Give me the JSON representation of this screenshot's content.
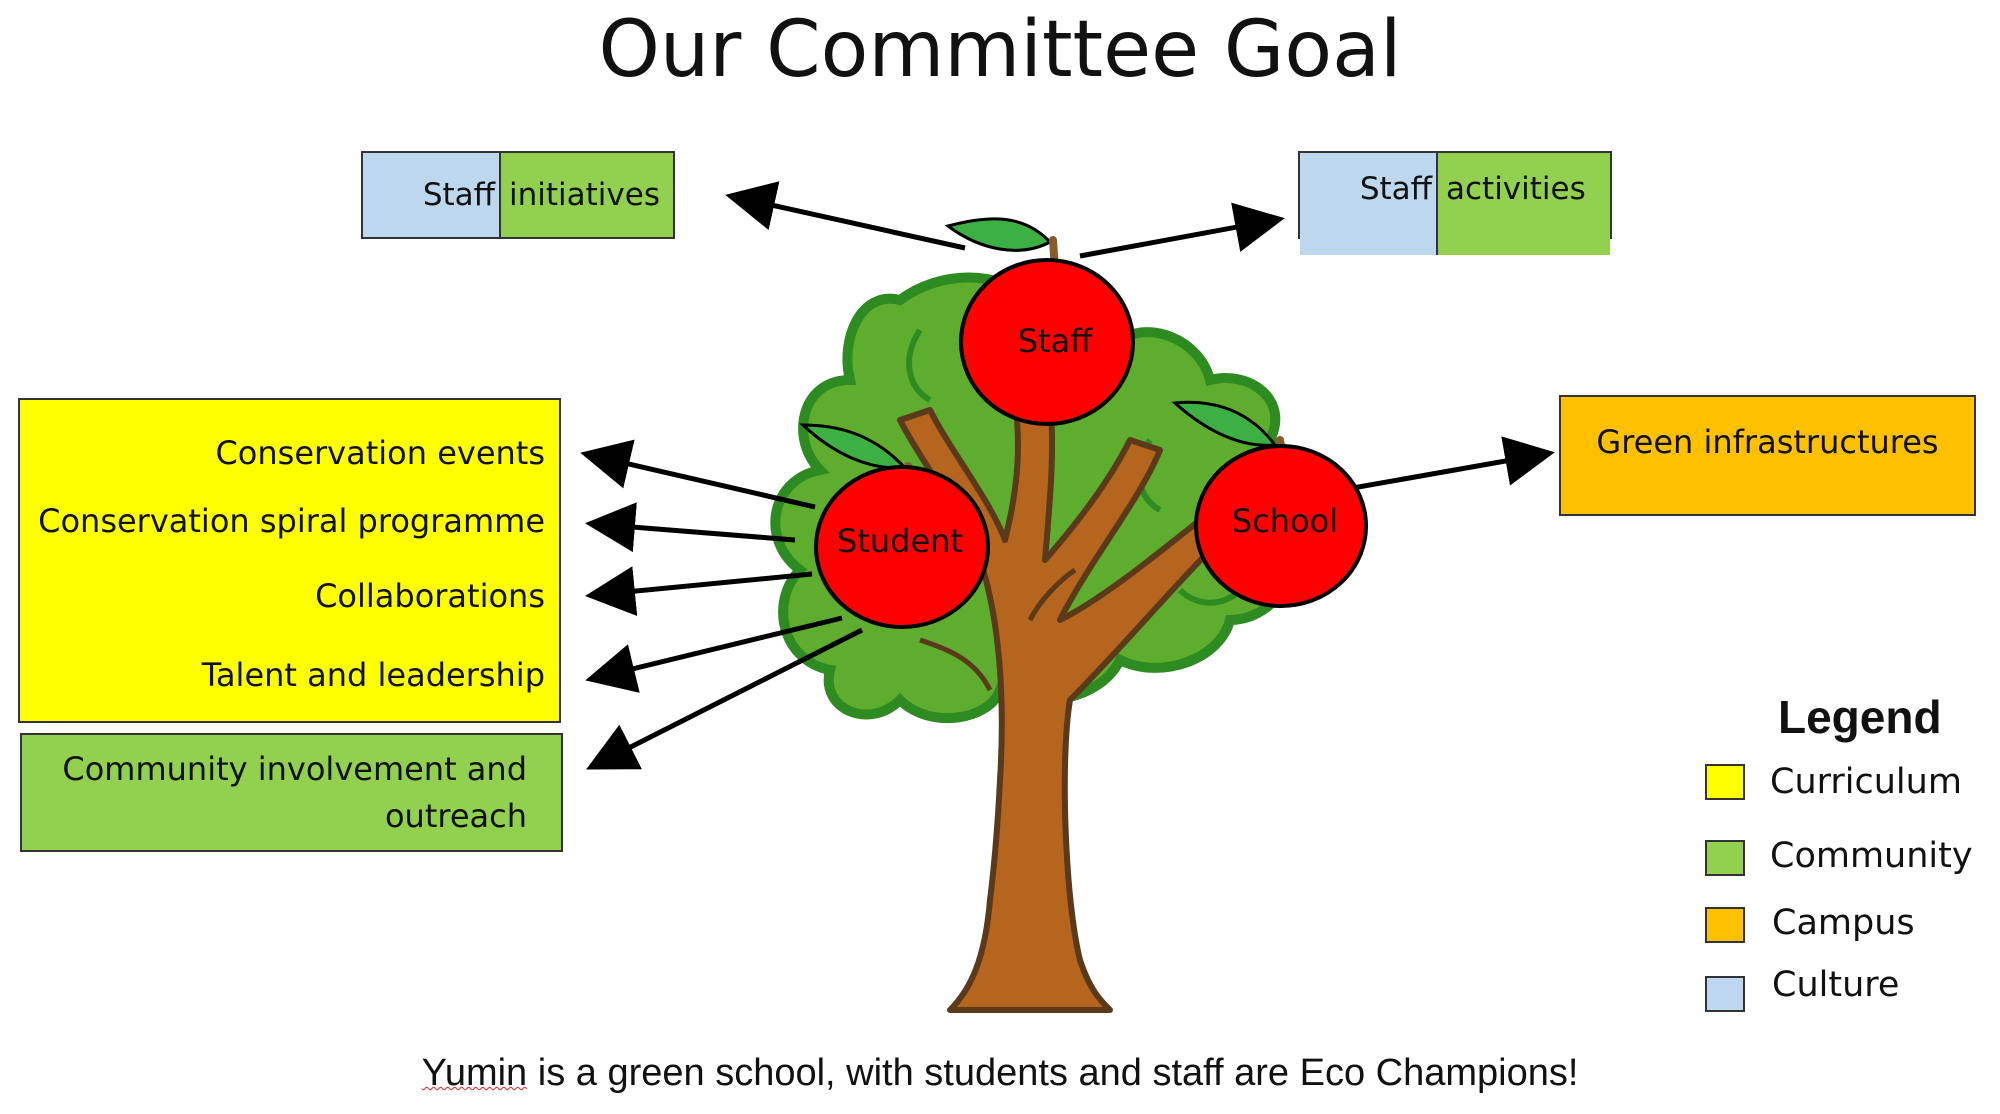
{
  "title": "Our Committee Goal",
  "colors": {
    "curriculum": "#ffff00",
    "community": "#92d050",
    "campus": "#ffc000",
    "culture": "#bdd7ee",
    "apple": "#ff0000",
    "trunk": "#b5651d",
    "foliage": "#5fad2f"
  },
  "apples": {
    "staff": "Staff",
    "student": "Student",
    "school": "School"
  },
  "staff_initiatives": {
    "culture_part": "Staff",
    "community_part": "initiatives"
  },
  "staff_activities": {
    "culture_part": "Staff",
    "community_part": "activities"
  },
  "curriculum_items": [
    "Conservation events",
    "Conservation spiral programme",
    "Collaborations",
    "Talent and leadership"
  ],
  "community_item": "Community involvement and outreach",
  "campus_item": "Green infrastructures",
  "legend": {
    "title": "Legend",
    "items": [
      {
        "label": "Curriculum",
        "color": "#ffff00"
      },
      {
        "label": "Community",
        "color": "#92d050"
      },
      {
        "label": "Campus",
        "color": "#ffc000"
      },
      {
        "label": "Culture",
        "color": "#bdd7ee"
      }
    ]
  },
  "caption": {
    "first_word": "Yumin",
    "rest": " is a green school, with students and staff are Eco Champions!"
  }
}
